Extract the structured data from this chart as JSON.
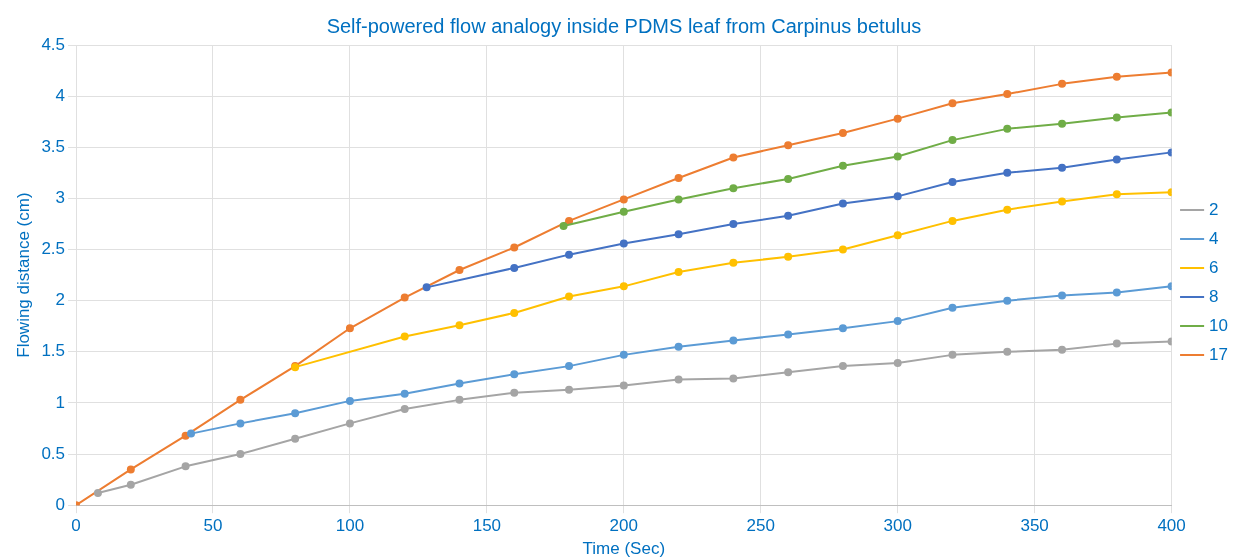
{
  "chart_data": {
    "type": "line",
    "title": "Self-powered flow analogy inside PDMS leaf from Carpinus betulus",
    "xlabel": "Time (Sec)",
    "ylabel": "Flowing distance (cm)",
    "xlim": [
      0,
      400
    ],
    "xticks": [
      0,
      50,
      100,
      150,
      200,
      250,
      300,
      350,
      400
    ],
    "ylim": [
      0,
      4.5
    ],
    "yticks": [
      0,
      0.5,
      1,
      1.5,
      2,
      2.5,
      3,
      3.5,
      4,
      4.5
    ],
    "grid": true,
    "legend": "right",
    "marker": "circle",
    "line_style": "solid",
    "series": [
      {
        "name": "2",
        "color": "#a5a5a5",
        "x": [
          8,
          20,
          40,
          60,
          80,
          100,
          120,
          140,
          160,
          180,
          200,
          220,
          240,
          260,
          280,
          300,
          320,
          340,
          360,
          380,
          400
        ],
        "values": [
          0.12,
          0.2,
          0.38,
          0.5,
          0.65,
          0.8,
          0.94,
          1.03,
          1.1,
          1.13,
          1.17,
          1.23,
          1.24,
          1.3,
          1.36,
          1.39,
          1.47,
          1.5,
          1.52,
          1.58,
          1.6
        ]
      },
      {
        "name": "4",
        "color": "#5b9bd5",
        "x": [
          42,
          60,
          80,
          100,
          120,
          140,
          160,
          180,
          200,
          220,
          240,
          260,
          280,
          300,
          320,
          340,
          360,
          380,
          400
        ],
        "values": [
          0.7,
          0.8,
          0.9,
          1.02,
          1.09,
          1.19,
          1.28,
          1.36,
          1.47,
          1.55,
          1.61,
          1.67,
          1.73,
          1.8,
          1.93,
          2.0,
          2.05,
          2.08,
          2.14
        ]
      },
      {
        "name": "6",
        "color": "#ffc000",
        "x": [
          80,
          120,
          140,
          160,
          180,
          200,
          220,
          240,
          260,
          280,
          300,
          320,
          340,
          360,
          380,
          400
        ],
        "values": [
          1.35,
          1.65,
          1.76,
          1.88,
          2.04,
          2.14,
          2.28,
          2.37,
          2.43,
          2.5,
          2.64,
          2.78,
          2.89,
          2.97,
          3.04,
          3.06
        ]
      },
      {
        "name": "8",
        "color": "#4472c4",
        "x": [
          128,
          160,
          180,
          200,
          220,
          240,
          260,
          280,
          300,
          320,
          340,
          360,
          380,
          400
        ],
        "values": [
          2.13,
          2.32,
          2.45,
          2.56,
          2.65,
          2.75,
          2.83,
          2.95,
          3.02,
          3.16,
          3.25,
          3.3,
          3.38,
          3.45
        ]
      },
      {
        "name": "10",
        "color": "#70ad47",
        "x": [
          178,
          200,
          220,
          240,
          260,
          280,
          300,
          320,
          340,
          360,
          380,
          400
        ],
        "values": [
          2.73,
          2.87,
          2.99,
          3.1,
          3.19,
          3.32,
          3.41,
          3.57,
          3.68,
          3.73,
          3.79,
          3.84
        ]
      },
      {
        "name": "17",
        "color": "#ed7d31",
        "x": [
          0,
          20,
          40,
          60,
          80,
          100,
          120,
          140,
          160,
          180,
          200,
          220,
          240,
          260,
          280,
          300,
          320,
          340,
          360,
          380,
          400
        ],
        "values": [
          0,
          0.35,
          0.68,
          1.03,
          1.36,
          1.73,
          2.03,
          2.3,
          2.52,
          2.78,
          2.99,
          3.2,
          3.4,
          3.52,
          3.64,
          3.78,
          3.93,
          4.02,
          4.12,
          4.19,
          4.23
        ]
      }
    ]
  }
}
